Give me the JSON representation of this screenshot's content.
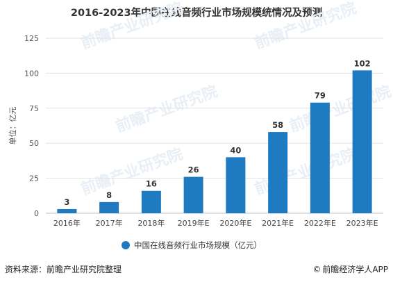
{
  "chart_data": {
    "type": "bar",
    "title": "2016-2023年中国在线音频行业市场规模统情况及预测",
    "categories": [
      "2016年",
      "2017年",
      "2018年",
      "2019年E",
      "2020年E",
      "2021年E",
      "2022年E",
      "2023年E"
    ],
    "series": [
      {
        "name": "中国在线音频行业市场规模（亿元）",
        "values": [
          3,
          8,
          16,
          26,
          40,
          58,
          79,
          102
        ]
      }
    ],
    "xlabel": "",
    "ylabel": "单位：亿元",
    "ylim": [
      0,
      125
    ],
    "yticks": [
      0,
      25,
      50,
      75,
      100,
      125
    ],
    "grid": true,
    "legend_position": "bottom",
    "data_labels": true,
    "colors": {
      "bar": "#1f7bc1",
      "grid": "#e3e3e3",
      "axis": "#bfbfbf"
    }
  },
  "footer": {
    "source": "资料来源：前瞻产业研究院整理",
    "credit_mark": "©",
    "credit": "前瞻经济学人APP"
  },
  "watermark": {
    "brand": "前瞻产业研究院"
  }
}
